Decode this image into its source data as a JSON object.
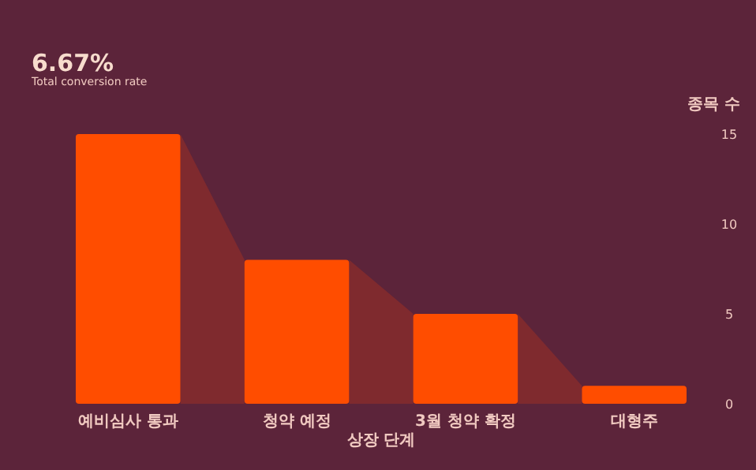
{
  "chart_data": {
    "type": "bar",
    "title": "6.67%",
    "subtitle": "Total conversion rate",
    "xlabel": "상장 단계",
    "ylabel": "종목 수",
    "categories": [
      "예비심사 통과",
      "청약 예정",
      "3월 청약 확정",
      "대형주"
    ],
    "values": [
      15,
      8,
      5,
      1
    ],
    "color": "#ff4d00",
    "ylim": [
      0,
      15
    ],
    "yticks": [
      0,
      5,
      10,
      15
    ],
    "grid": false
  }
}
